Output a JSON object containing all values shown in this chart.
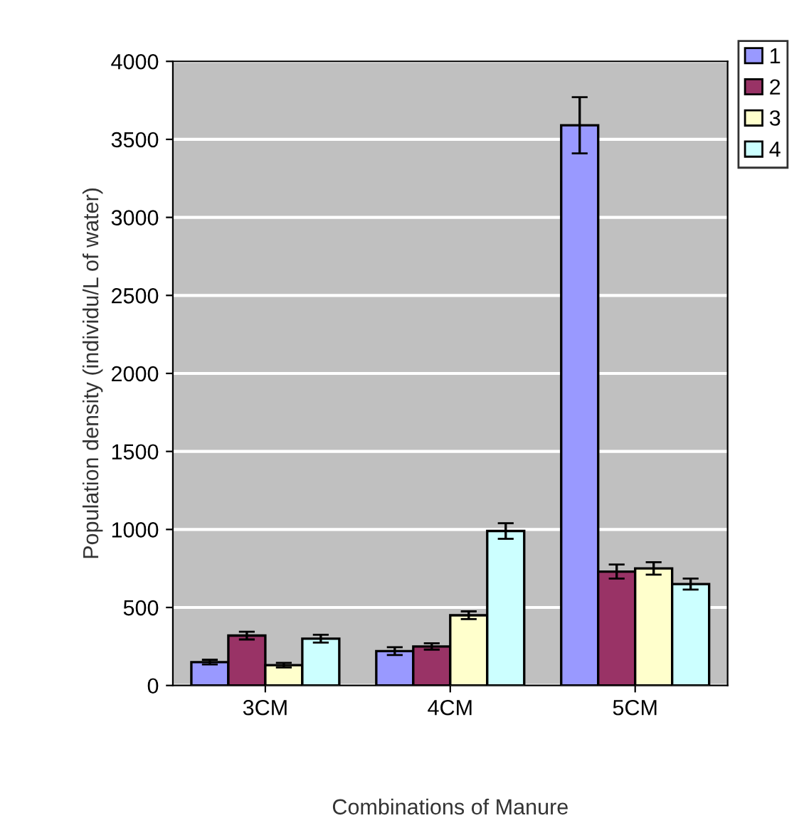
{
  "chart_data": {
    "type": "bar",
    "xlabel": "Combinations of Manure",
    "ylabel": "Population density (individu/L of water)",
    "categories": [
      "3CM",
      "4CM",
      "5CM"
    ],
    "series": [
      {
        "name": "1",
        "color": "#9999ff",
        "values": [
          150,
          220,
          3590
        ],
        "errors": [
          15,
          25,
          180
        ]
      },
      {
        "name": "2",
        "color": "#993366",
        "values": [
          320,
          250,
          730
        ],
        "errors": [
          25,
          20,
          45
        ]
      },
      {
        "name": "3",
        "color": "#ffffcc",
        "values": [
          130,
          450,
          750
        ],
        "errors": [
          15,
          25,
          40
        ]
      },
      {
        "name": "4",
        "color": "#ccffff",
        "values": [
          300,
          990,
          650
        ],
        "errors": [
          25,
          50,
          35
        ]
      }
    ],
    "ylim": [
      0,
      4000
    ],
    "yticks": [
      0,
      500,
      1000,
      1500,
      2000,
      2500,
      3000,
      3500,
      4000
    ],
    "grid": "y",
    "legend": "top right"
  }
}
